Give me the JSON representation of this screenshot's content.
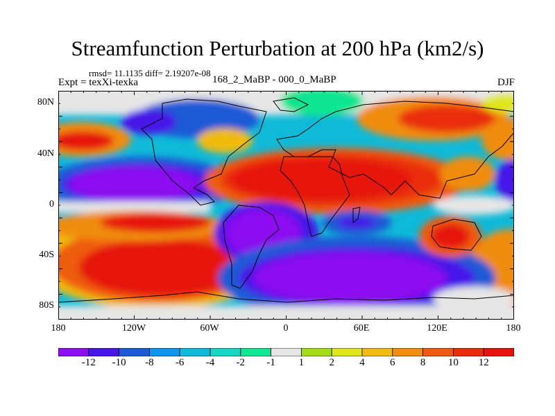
{
  "title": "Streamfunction Perturbation at 200 hPa (km2/s)",
  "stats_line": "rmsd= 11.1135 diff= 2.19207e-08",
  "experiment": "Expt = texXi-texka",
  "comparison": "168_2_MaBP - 000_0_MaBP",
  "season": "DJF",
  "map": {
    "projection": "cylindrical equidistant",
    "lon_range": [
      -180,
      180
    ],
    "lat_range": [
      -90,
      90
    ],
    "y_ticks": [
      "80N",
      "40N",
      "0",
      "40S",
      "80S"
    ],
    "x_ticks": [
      "180",
      "120W",
      "60W",
      "0",
      "60E",
      "120E",
      "180"
    ],
    "fill_colors": [
      "#8b0ff0",
      "#4616e8",
      "#1d5ad6",
      "#0f96ec",
      "#0fb9d8",
      "#17d6c4",
      "#0fe592",
      "#e6e6e6",
      "#a5dc18",
      "#dfe61a",
      "#f0ba10",
      "#f08c0e",
      "#ee5b10",
      "#ea2d0c",
      "#e6120e"
    ],
    "features": [
      {
        "sign": "negative",
        "level": -12,
        "region": "eastern Pacific, equator to 35N"
      },
      {
        "sign": "positive",
        "level": 12,
        "region": "Atlantic / Africa / Asia, 0 to 40N"
      },
      {
        "sign": "negative",
        "level": -12,
        "region": "South Atlantic, 10S to 40S"
      },
      {
        "sign": "negative",
        "level": -12,
        "region": "Southern Ocean, 40S to 75S"
      },
      {
        "sign": "positive",
        "level": 12,
        "region": "South Pacific, 30S to 65S"
      },
      {
        "sign": "positive",
        "level": 10,
        "region": "western Australia, 30S"
      },
      {
        "sign": "positive",
        "level": 8,
        "region": "Siberia, 60N to 80N"
      }
    ]
  },
  "colorbar": {
    "colors": [
      "#8b0ff0",
      "#4616e8",
      "#1d5ad6",
      "#0f96ec",
      "#0fb9d8",
      "#17d6c4",
      "#0fe592",
      "#e6e6e6",
      "#a5dc18",
      "#dfe61a",
      "#f0ba10",
      "#f08c0e",
      "#ee5b10",
      "#ea2d0c",
      "#e6120e"
    ],
    "labels": [
      "-12",
      "-10",
      "-8",
      "-6",
      "-4",
      "-2",
      "-1",
      "1",
      "2",
      "4",
      "6",
      "8",
      "10",
      "12"
    ]
  }
}
